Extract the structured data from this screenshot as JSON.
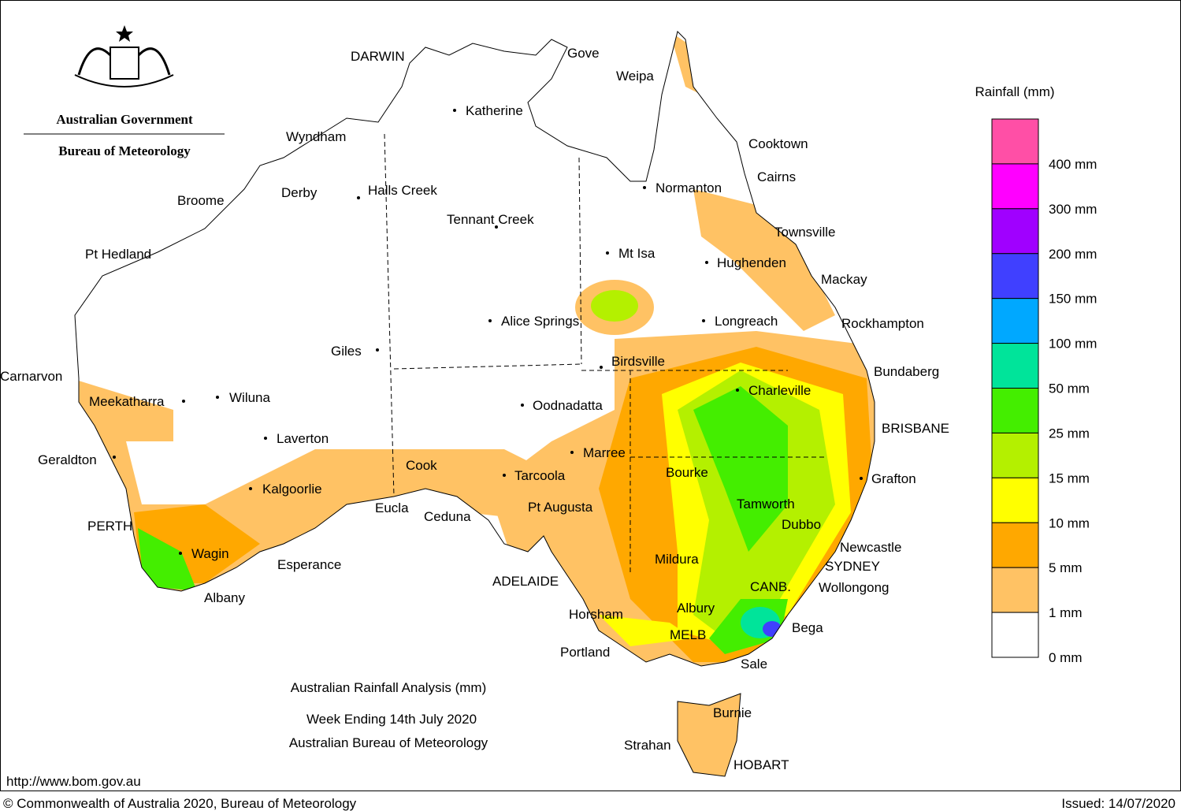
{
  "header": {
    "government": "Australian Government",
    "bureau": "Bureau of Meteorology"
  },
  "legend": {
    "title": "Rainfall (mm)",
    "colors": [
      "#ff4fa6",
      "#ff00ff",
      "#a000ff",
      "#4040ff",
      "#00a8ff",
      "#00e49a",
      "#44ee00",
      "#b4f000",
      "#ffff00",
      "#ffa800",
      "#ffc264",
      "#ffffff"
    ],
    "labels": [
      "400 mm",
      "300 mm",
      "200 mm",
      "150 mm",
      "100 mm",
      "50 mm",
      "25 mm",
      "15 mm",
      "10 mm",
      "5 mm",
      "1 mm",
      "0 mm"
    ]
  },
  "places": [
    "DARWIN",
    "Gove",
    "Weipa",
    "Katherine",
    "Cooktown",
    "Wyndham",
    "Cairns",
    "Normanton",
    "Derby",
    "Halls Creek",
    "Broome",
    "Tennant Creek",
    "Townsville",
    "Pt Hedland",
    "Mt Isa",
    "Hughenden",
    "Mackay",
    "Alice Springs",
    "Longreach",
    "Rockhampton",
    "Giles",
    "Birdsville",
    "Bundaberg",
    "Carnarvon",
    "Charleville",
    "Meekatharra",
    "Wiluna",
    "Oodnadatta",
    "BRISBANE",
    "Laverton",
    "Marree",
    "Geraldton",
    "Cook",
    "Bourke",
    "Tarcoola",
    "Grafton",
    "Kalgoorlie",
    "Tamworth",
    "Eucla",
    "Pt Augusta",
    "Ceduna",
    "Dubbo",
    "PERTH",
    "Newcastle",
    "Wagin",
    "Mildura",
    "Esperance",
    "SYDNEY",
    "ADELAIDE",
    "CANB.",
    "Wollongong",
    "Albany",
    "Horsham",
    "Albury",
    "Bega",
    "MELB",
    "Portland",
    "Sale",
    "Burnie",
    "Strahan",
    "HOBART"
  ],
  "title": {
    "line1": "Australian Rainfall Analysis (mm)",
    "line2": "Week Ending 14th July 2020",
    "line3": "Australian Bureau of Meteorology"
  },
  "footer": {
    "url": "http://www.bom.gov.au",
    "copyright": "© Commonwealth of Australia 2020, Bureau of Meteorology",
    "issued": "Issued: 14/07/2020"
  }
}
